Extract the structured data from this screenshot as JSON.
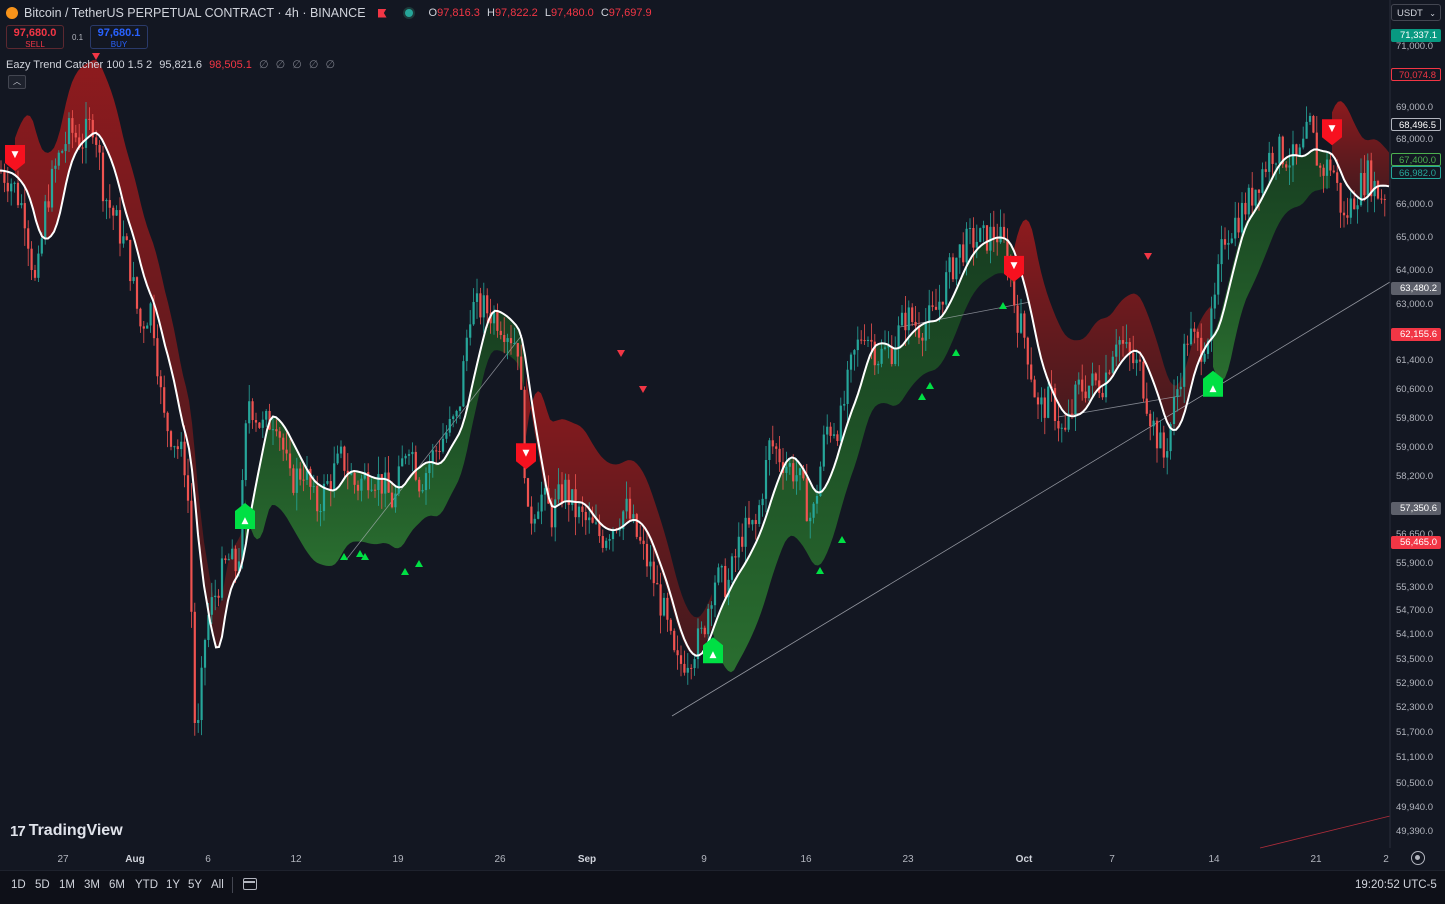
{
  "header": {
    "title": "Bitcoin / TetherUS PERPETUAL CONTRACT · 4h · BINANCE",
    "ohlc": {
      "o_label": "O",
      "o": "97,816.3",
      "h_label": "H",
      "h": "97,822.2",
      "l_label": "L",
      "l": "97,480.0",
      "c_label": "C",
      "c": "97,697.9"
    }
  },
  "trade": {
    "sell_price": "97,680.0",
    "sell_label": "SELL",
    "spread": "0.1",
    "buy_price": "97,680.1",
    "buy_label": "BUY"
  },
  "indicator": {
    "name": "Eazy Trend Catcher 100 1.5 2",
    "value1": "95,821.6",
    "value2": "98,505.1",
    "symbols": "∅ ∅ ∅ ∅ ∅"
  },
  "currency": "USDT",
  "price_axis": {
    "labels": [
      "71,000.0",
      "69,000.0",
      "68,000.0",
      "66,000.0",
      "65,000.0",
      "64,000.0",
      "63,000.0",
      "61,400.0",
      "60,600.0",
      "59,800.0",
      "59,000.0",
      "58,200.0",
      "56,650.0",
      "55,900.0",
      "55,300.0",
      "54,700.0",
      "54,100.0",
      "53,500.0",
      "52,900.0",
      "52,300.0",
      "51,700.0",
      "51,100.0",
      "50,500.0",
      "49,940.0",
      "49,390.0"
    ],
    "tags": [
      {
        "text": "71,337.1",
        "color": "#089981",
        "fg": "#ffffff"
      },
      {
        "text": "70,074.8",
        "color": "#131722",
        "fg": "#f23645",
        "border": "#f23645"
      },
      {
        "text": "68,496.5",
        "color": "#131722",
        "fg": "#ffffff",
        "border": "#b2b5be"
      },
      {
        "text": "67,400.0",
        "color": "#131722",
        "fg": "#4caf50",
        "border": "#4caf50"
      },
      {
        "text": "66,982.0",
        "color": "#131722",
        "fg": "#26a69a",
        "border": "#26a69a"
      },
      {
        "text": "63,480.2",
        "color": "#5d606b",
        "fg": "#ffffff"
      },
      {
        "text": "62,155.6",
        "color": "#f23645",
        "fg": "#ffffff"
      },
      {
        "text": "57,350.6",
        "color": "#5d606b",
        "fg": "#ffffff"
      },
      {
        "text": "56,465.0",
        "color": "#f23645",
        "fg": "#ffffff"
      }
    ]
  },
  "time_axis": [
    "27",
    "Aug",
    "6",
    "12",
    "19",
    "26",
    "Sep",
    "9",
    "16",
    "23",
    "Oct",
    "7",
    "14",
    "21",
    "2"
  ],
  "timeframes": [
    "1D",
    "5D",
    "1M",
    "3M",
    "6M",
    "YTD",
    "1Y",
    "5Y",
    "All"
  ],
  "clock": "19:20:52 UTC-5",
  "brand": "TradingView",
  "colors": {
    "bull": "#00c853",
    "bear": "#f23645",
    "up_candle": "#26a69a",
    "down_candle": "#ef5350",
    "bg": "#131722"
  },
  "chart_data": {
    "type": "candlestick",
    "title": "Bitcoin / TetherUS PERPETUAL CONTRACT · 4h · BINANCE",
    "ylim": [
      49000,
      71800
    ],
    "x_ticks": [
      "27",
      "Aug",
      "6",
      "12",
      "19",
      "26",
      "Sep",
      "9",
      "16",
      "23",
      "Oct",
      "7",
      "14",
      "21",
      "2"
    ],
    "path": [
      [
        0,
        67600
      ],
      [
        12,
        67300
      ],
      [
        25,
        66400
      ],
      [
        36,
        64300
      ],
      [
        46,
        66700
      ],
      [
        58,
        67900
      ],
      [
        70,
        68700
      ],
      [
        82,
        68400
      ],
      [
        94,
        69000
      ],
      [
        104,
        67000
      ],
      [
        116,
        66200
      ],
      [
        128,
        65300
      ],
      [
        140,
        63300
      ],
      [
        152,
        63900
      ],
      [
        163,
        60800
      ],
      [
        176,
        60100
      ],
      [
        187,
        59400
      ],
      [
        196,
        51400
      ],
      [
        206,
        55100
      ],
      [
        218,
        56200
      ],
      [
        228,
        56900
      ],
      [
        238,
        56600
      ],
      [
        248,
        61400
      ],
      [
        262,
        60500
      ],
      [
        276,
        60900
      ],
      [
        290,
        59000
      ],
      [
        304,
        59400
      ],
      [
        316,
        58300
      ],
      [
        330,
        59100
      ],
      [
        342,
        59700
      ],
      [
        356,
        58900
      ],
      [
        370,
        59300
      ],
      [
        382,
        59000
      ],
      [
        394,
        58400
      ],
      [
        408,
        60300
      ],
      [
        420,
        59000
      ],
      [
        432,
        59700
      ],
      [
        444,
        60300
      ],
      [
        458,
        60800
      ],
      [
        470,
        63800
      ],
      [
        484,
        63800
      ],
      [
        496,
        63600
      ],
      [
        508,
        63200
      ],
      [
        518,
        62800
      ],
      [
        528,
        57900
      ],
      [
        540,
        58700
      ],
      [
        552,
        58100
      ],
      [
        564,
        58900
      ],
      [
        576,
        58200
      ],
      [
        590,
        57800
      ],
      [
        602,
        57500
      ],
      [
        614,
        57900
      ],
      [
        626,
        58300
      ],
      [
        640,
        57300
      ],
      [
        652,
        56500
      ],
      [
        664,
        55400
      ],
      [
        676,
        53900
      ],
      [
        690,
        54300
      ],
      [
        702,
        54800
      ],
      [
        714,
        56400
      ],
      [
        728,
        56200
      ],
      [
        742,
        57600
      ],
      [
        756,
        57800
      ],
      [
        770,
        60100
      ],
      [
        784,
        59600
      ],
      [
        798,
        59200
      ],
      [
        812,
        57900
      ],
      [
        826,
        60500
      ],
      [
        840,
        60600
      ],
      [
        852,
        62300
      ],
      [
        864,
        63300
      ],
      [
        878,
        62500
      ],
      [
        892,
        62700
      ],
      [
        906,
        63600
      ],
      [
        920,
        63300
      ],
      [
        934,
        63600
      ],
      [
        948,
        64700
      ],
      [
        960,
        65400
      ],
      [
        972,
        65700
      ],
      [
        984,
        65700
      ],
      [
        996,
        65900
      ],
      [
        1006,
        65400
      ],
      [
        1016,
        63700
      ],
      [
        1026,
        62900
      ],
      [
        1038,
        61000
      ],
      [
        1052,
        61300
      ],
      [
        1064,
        60200
      ],
      [
        1078,
        61600
      ],
      [
        1090,
        61700
      ],
      [
        1104,
        61800
      ],
      [
        1116,
        63100
      ],
      [
        1128,
        62500
      ],
      [
        1140,
        62100
      ],
      [
        1152,
        60700
      ],
      [
        1164,
        59700
      ],
      [
        1176,
        61400
      ],
      [
        1188,
        63100
      ],
      [
        1200,
        62700
      ],
      [
        1212,
        63400
      ],
      [
        1224,
        65800
      ],
      [
        1238,
        66300
      ],
      [
        1250,
        66800
      ],
      [
        1262,
        67600
      ],
      [
        1274,
        68200
      ],
      [
        1286,
        68000
      ],
      [
        1298,
        67800
      ],
      [
        1310,
        68800
      ],
      [
        1320,
        67600
      ],
      [
        1332,
        67800
      ],
      [
        1344,
        66200
      ],
      [
        1356,
        67000
      ],
      [
        1368,
        67500
      ],
      [
        1380,
        66900
      ],
      [
        1390,
        67100
      ]
    ],
    "signals": {
      "sell_x": [
        15,
        526,
        1014,
        1332
      ],
      "buy_x": [
        245,
        713,
        1213
      ],
      "small_up_x": [
        344,
        360,
        365,
        405,
        419,
        820,
        842,
        922,
        930,
        956,
        1003
      ],
      "small_down_x": [
        96,
        621,
        643,
        1148
      ]
    },
    "grid": false,
    "legend": "none"
  }
}
